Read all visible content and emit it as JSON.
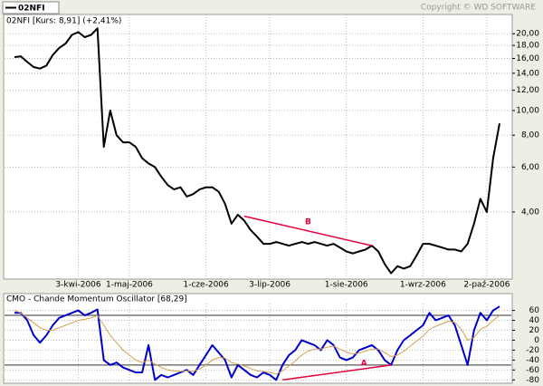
{
  "copyright": "Copyright © WD SOFTWARE",
  "chart_data": [
    {
      "type": "line",
      "title": "02NFI [Kurs: 8,91] (+2,41%)",
      "log_scale": true,
      "grid": true,
      "categories": [
        null,
        null,
        null,
        null,
        null,
        null,
        null,
        null,
        null,
        null,
        "3-kwi-2006",
        null,
        null,
        null,
        null,
        null,
        null,
        null,
        "1-maj-2006",
        null,
        null,
        null,
        null,
        null,
        null,
        null,
        null,
        null,
        null,
        null,
        "1-cze-2006",
        null,
        null,
        null,
        null,
        null,
        null,
        null,
        null,
        null,
        "3-lip-2006",
        null,
        null,
        null,
        null,
        null,
        null,
        null,
        null,
        null,
        null,
        null,
        "1-sie-2006",
        null,
        null,
        null,
        null,
        null,
        null,
        null,
        null,
        null,
        null,
        null,
        "1-wrz-2006",
        null,
        null,
        null,
        null,
        null,
        null,
        null,
        null,
        null,
        "2-paź-2006",
        null,
        null
      ],
      "series": [
        {
          "name": "02NFI",
          "color": "#000000",
          "values": [
            16.2,
            16.3,
            15.5,
            14.8,
            14.6,
            15.0,
            16.5,
            17.6,
            18.3,
            19.8,
            20.3,
            19.4,
            19.8,
            21.0,
            7.2,
            10.0,
            8.0,
            7.5,
            7.5,
            7.2,
            6.5,
            6.2,
            6.0,
            5.5,
            5.1,
            4.9,
            5.0,
            4.6,
            4.7,
            4.9,
            5.0,
            5.0,
            4.8,
            4.3,
            3.6,
            3.9,
            3.7,
            3.4,
            3.2,
            3.0,
            3.0,
            3.05,
            3.0,
            2.95,
            3.0,
            3.05,
            3.0,
            3.05,
            3.0,
            2.95,
            3.0,
            2.9,
            2.8,
            2.75,
            2.8,
            2.85,
            2.95,
            2.8,
            2.5,
            2.3,
            2.45,
            2.4,
            2.45,
            2.7,
            3.0,
            3.0,
            2.95,
            2.9,
            2.85,
            2.85,
            2.8,
            3.0,
            3.6,
            4.5,
            4.0,
            6.5,
            8.9
          ]
        }
      ],
      "ylim": [
        2.2,
        23.6
      ],
      "yticks": [
        {
          "value": 20,
          "label": "20,00"
        },
        {
          "value": 18,
          "label": "18,00"
        },
        {
          "value": 16,
          "label": "16,00"
        },
        {
          "value": 14,
          "label": "14,00"
        },
        {
          "value": 12,
          "label": "12,00"
        },
        {
          "value": 10,
          "label": "10,00"
        },
        {
          "value": 8,
          "label": "8,00"
        },
        {
          "value": 6,
          "label": "6,00"
        },
        {
          "value": 4,
          "label": "4,00"
        }
      ],
      "annotations": [
        {
          "text": "B",
          "color": "#e8003c",
          "x": [
            36,
            56
          ],
          "y": [
            3.85,
            2.95
          ]
        }
      ]
    },
    {
      "type": "line",
      "title": "CMO - Chande Momentum Oscillator [68,29]",
      "grid": true,
      "series": [
        {
          "color": "#0000cc",
          "values": [
            55,
            55,
            40,
            10,
            -5,
            10,
            30,
            45,
            50,
            55,
            60,
            50,
            55,
            62,
            -40,
            -50,
            -45,
            -55,
            -60,
            -65,
            -65,
            -10,
            -80,
            -70,
            -75,
            -70,
            -65,
            -60,
            -70,
            -50,
            -30,
            -10,
            -25,
            -40,
            -75,
            -50,
            -60,
            -70,
            -75,
            -65,
            -70,
            -80,
            -50,
            -30,
            -20,
            0,
            -5,
            -10,
            -20,
            0,
            -10,
            -35,
            -40,
            -35,
            -20,
            -15,
            -10,
            -20,
            -40,
            -50,
            -20,
            0,
            10,
            20,
            30,
            55,
            40,
            45,
            50,
            30,
            -10,
            -50,
            20,
            55,
            40,
            60,
            68
          ]
        },
        {
          "color": "#d4a050",
          "values": [
            60,
            55,
            45,
            35,
            25,
            20,
            20,
            25,
            30,
            35,
            40,
            42,
            45,
            50,
            30,
            10,
            -5,
            -20,
            -30,
            -40,
            -45,
            -40,
            -48,
            -55,
            -60,
            -62,
            -63,
            -62,
            -63,
            -58,
            -50,
            -40,
            -35,
            -36,
            -45,
            -48,
            -52,
            -57,
            -62,
            -63,
            -65,
            -68,
            -62,
            -52,
            -42,
            -30,
            -22,
            -18,
            -18,
            -14,
            -12,
            -18,
            -24,
            -28,
            -26,
            -22,
            -18,
            -18,
            -25,
            -33,
            -30,
            -22,
            -12,
            -2,
            8,
            22,
            28,
            33,
            38,
            36,
            22,
            0,
            5,
            22,
            28,
            40,
            50
          ]
        }
      ],
      "ylim": [
        -85,
        72
      ],
      "yticks": [
        60,
        40,
        20,
        0,
        -20,
        -40,
        -60,
        -80
      ],
      "levels": [
        50,
        -50
      ],
      "annotations": [
        {
          "text": "A",
          "color": "#e8003c",
          "x": [
            42,
            59
          ],
          "y": [
            -80,
            -50
          ]
        }
      ]
    }
  ]
}
